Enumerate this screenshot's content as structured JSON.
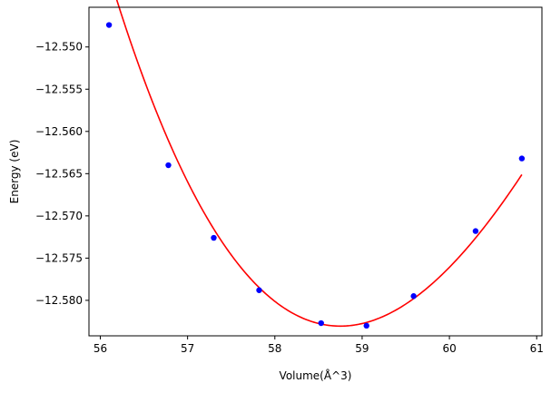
{
  "chart_data": {
    "type": "scatter",
    "title": "",
    "xlabel": "Volume(Å^3)",
    "ylabel": "Energy (eV)",
    "xlim": [
      55.87,
      61.06
    ],
    "ylim": [
      -12.5842,
      -12.5453
    ],
    "xticks": [
      56,
      57,
      58,
      59,
      60,
      61
    ],
    "xtick_labels": [
      "56",
      "57",
      "58",
      "59",
      "60",
      "61"
    ],
    "yticks": [
      -12.55,
      -12.555,
      -12.56,
      -12.565,
      -12.57,
      -12.575,
      -12.58
    ],
    "ytick_labels": [
      "−12.550",
      "−12.555",
      "−12.560",
      "−12.565",
      "−12.570",
      "−12.575",
      "−12.580"
    ],
    "grid": false,
    "legend": "none",
    "series": [
      {
        "kind": "markers",
        "color": "#0000ff",
        "x": [
          56.1,
          56.78,
          57.3,
          57.82,
          58.53,
          59.05,
          59.59,
          60.3,
          60.83
        ],
        "y": [
          -12.5474,
          -12.564,
          -12.5726,
          -12.5788,
          -12.5827,
          -12.583,
          -12.5795,
          -12.5718,
          -12.5632
        ]
      },
      {
        "kind": "fit-curve",
        "color": "#ff0000",
        "x_range": [
          56.1,
          60.83
        ],
        "fit": {
          "x_min": 58.75,
          "y_min": -12.58305,
          "curvature": 0.004926,
          "skew": -0.000375
        }
      }
    ]
  }
}
